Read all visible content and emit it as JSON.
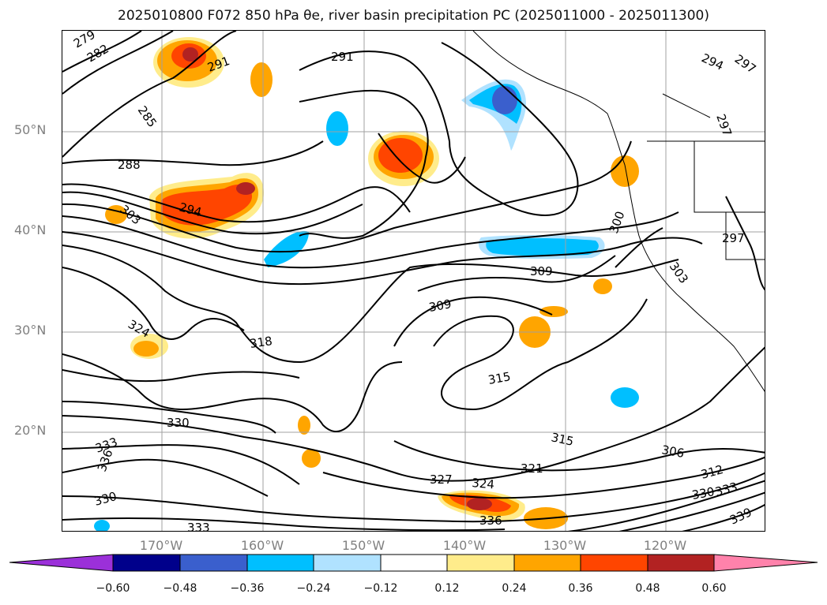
{
  "title": "2025010800 F072 850 hPa θe, river basin precipitation PC (2025011000 - 2025011300)",
  "lat_labels": [
    "50°N",
    "40°N",
    "30°N",
    "20°N"
  ],
  "lon_labels": [
    "170°W",
    "160°W",
    "150°W",
    "140°W",
    "130°W",
    "120°W"
  ],
  "contour_labels": [
    "279",
    "282",
    "285",
    "288",
    "291",
    "291",
    "294",
    "294",
    "297",
    "297",
    "297",
    "303",
    "300",
    "303",
    "306",
    "309",
    "309",
    "312",
    "315",
    "315",
    "318",
    "321",
    "324",
    "324",
    "327",
    "330",
    "330",
    "330",
    "333",
    "333",
    "333",
    "336",
    "336",
    "339"
  ],
  "colorbar": {
    "ticks": [
      "−0.60",
      "−0.48",
      "−0.36",
      "−0.24",
      "−0.12",
      "0.12",
      "0.24",
      "0.36",
      "0.48",
      "0.60"
    ],
    "colors": [
      "#9b30d9",
      "#00008b",
      "#3a5fcd",
      "#00bfff",
      "#b0e2ff",
      "#ffffff",
      "#ffec8b",
      "#ffa500",
      "#ff4500",
      "#b22222",
      "#ff82ab"
    ]
  },
  "shading_colors": {
    "pos_light": "#ffec8b",
    "pos_mid": "#ffa500",
    "pos_strong": "#ff4500",
    "pos_max": "#b22222",
    "neg_light": "#b0e2ff",
    "neg_mid": "#00bfff",
    "neg_strong": "#3a5fcd"
  }
}
